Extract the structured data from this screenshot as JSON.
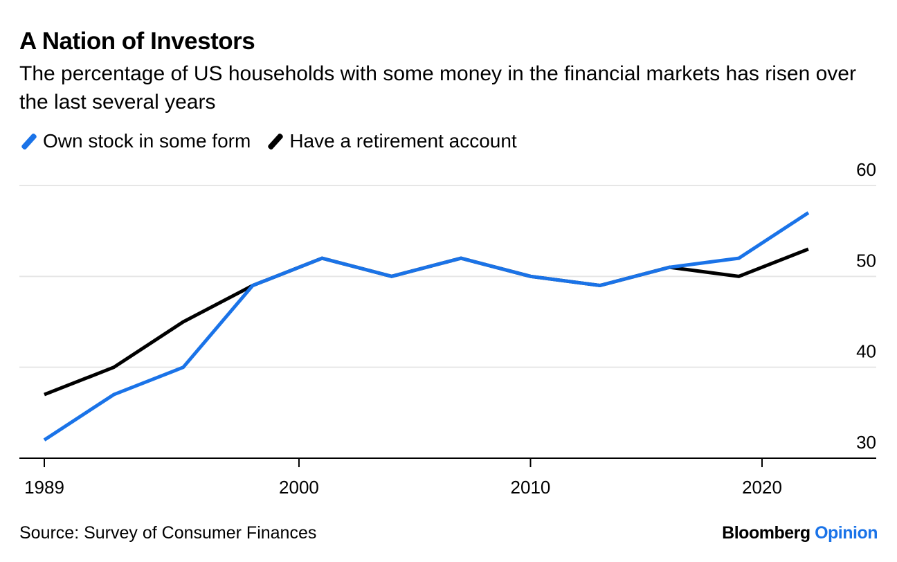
{
  "chart_data": {
    "type": "line",
    "title": "A Nation of Investors",
    "subtitle": "The percentage of US households with some money in the financial markets has risen over the last several years",
    "xlabel": "",
    "ylabel": "",
    "x": [
      1989,
      1992,
      1995,
      1998,
      2001,
      2004,
      2007,
      2010,
      2013,
      2016,
      2019,
      2022
    ],
    "x_ticks": [
      {
        "value": 1989,
        "label": "1989"
      },
      {
        "value": 2000,
        "label": "2000"
      },
      {
        "value": 2010,
        "label": "2010"
      },
      {
        "value": 2020,
        "label": "2020"
      }
    ],
    "y_ticks": [
      {
        "value": 30,
        "label": "30"
      },
      {
        "value": 40,
        "label": "40"
      },
      {
        "value": 50,
        "label": "50"
      },
      {
        "value": 60,
        "label": "60"
      }
    ],
    "xlim": [
      1988,
      2025
    ],
    "ylim": [
      30,
      60
    ],
    "grid": true,
    "legend_position": "top-left",
    "series": [
      {
        "name": "Own stock in some form",
        "color": "#1a73e8",
        "values": [
          32,
          37,
          40,
          49,
          52,
          50,
          52,
          50,
          49,
          51,
          52,
          57
        ]
      },
      {
        "name": "Have a retirement account",
        "color": "#000000",
        "values": [
          37,
          40,
          45,
          49,
          52,
          50,
          52,
          50,
          49,
          51,
          50,
          53
        ]
      }
    ],
    "source": "Source: Survey of Consumer Finances"
  },
  "brand": {
    "name": "Bloomberg",
    "section": "Opinion"
  }
}
